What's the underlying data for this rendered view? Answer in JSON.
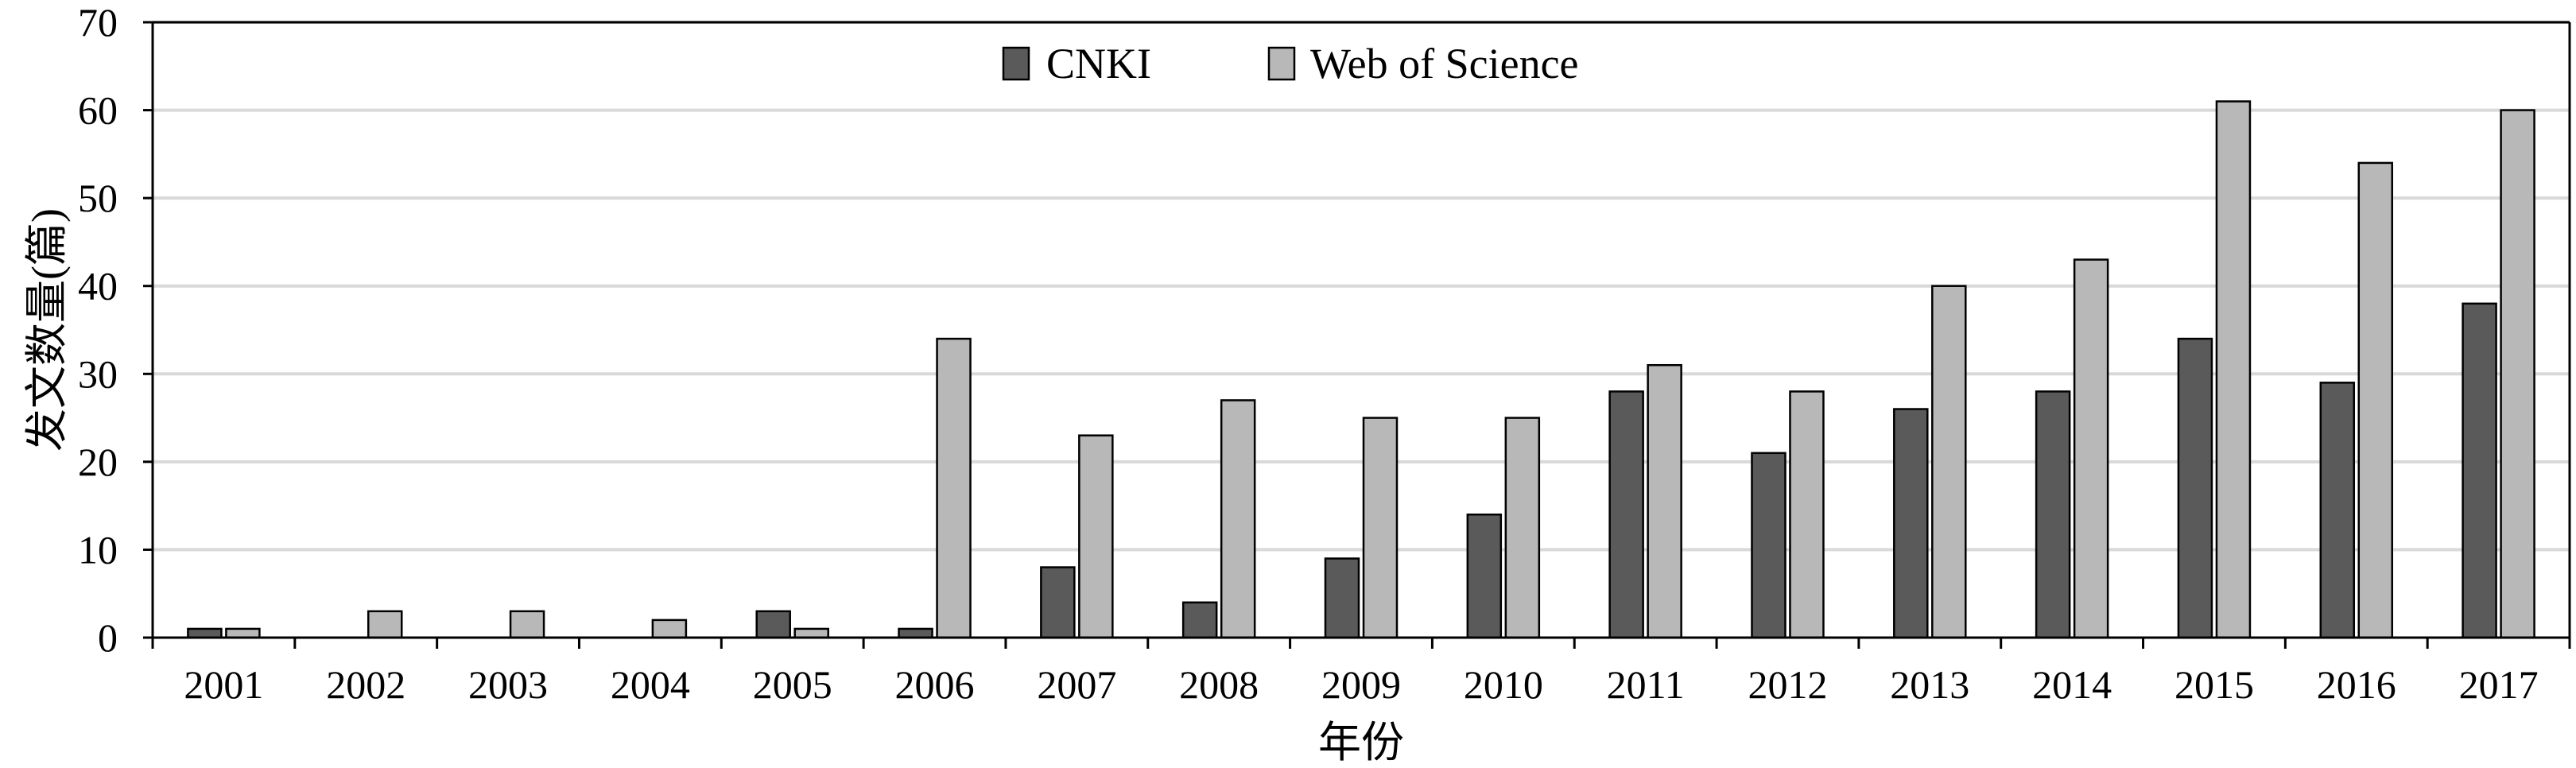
{
  "chart_data": {
    "type": "bar",
    "categories": [
      "2001",
      "2002",
      "2003",
      "2004",
      "2005",
      "2006",
      "2007",
      "2008",
      "2009",
      "2010",
      "2011",
      "2012",
      "2013",
      "2014",
      "2015",
      "2016",
      "2017"
    ],
    "series": [
      {
        "name": "CNKI",
        "color": "#5a5a5a",
        "values": [
          1,
          0,
          0,
          0,
          3,
          1,
          8,
          4,
          9,
          14,
          28,
          21,
          26,
          28,
          34,
          29,
          38
        ]
      },
      {
        "name": "Web of Science",
        "color": "#b8b8b8",
        "values": [
          1,
          3,
          3,
          2,
          1,
          34,
          23,
          27,
          25,
          25,
          31,
          28,
          40,
          43,
          61,
          54,
          60
        ]
      }
    ],
    "xlabel": "年份",
    "ylabel": "发文数量(篇)",
    "ylim": [
      0,
      70
    ],
    "yticks": [
      0,
      10,
      20,
      30,
      40,
      50,
      60,
      70
    ],
    "grid": true,
    "legend_position": "top-center"
  }
}
